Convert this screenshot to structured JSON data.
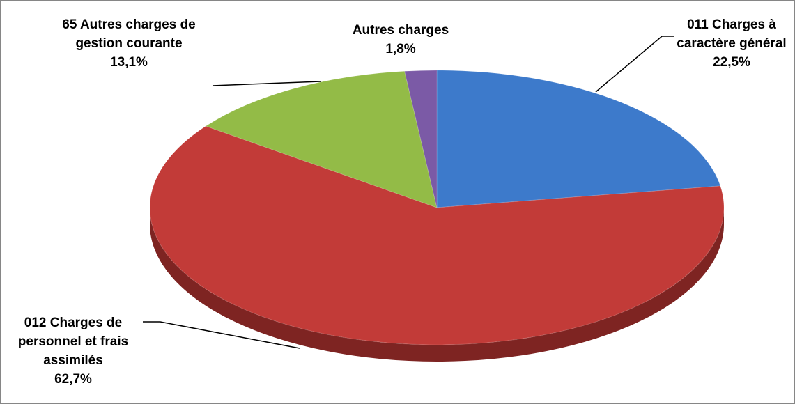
{
  "chart_data": {
    "type": "pie",
    "categories": [
      "011 Charges à caractère général",
      "012 Charges de personnel et frais assimilés",
      "65 Autres charges de gestion courante",
      "Autres charges"
    ],
    "values": [
      22.5,
      62.7,
      13.1,
      1.8
    ],
    "value_labels": [
      "22,5%",
      "62,7%",
      "13,1%",
      "1,8%"
    ],
    "colors": [
      "#3d7acb",
      "#c23b38",
      "#93bb47",
      "#7b5aa6"
    ],
    "side_colors": [
      "#27508a",
      "#7e2422",
      "#5f7a2c",
      "#4d3770"
    ]
  }
}
